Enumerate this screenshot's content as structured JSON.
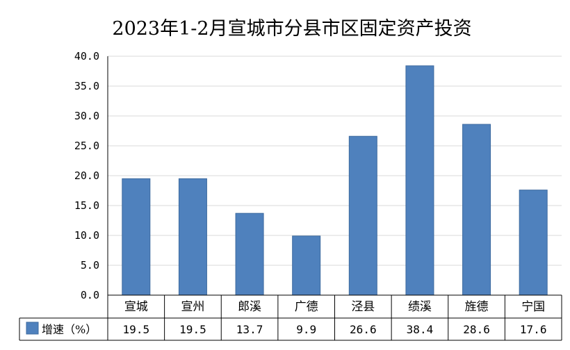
{
  "chart_data": {
    "type": "bar",
    "title": "2023年1-2月宣城市分县市区固定资产投资",
    "categories": [
      "宣城",
      "宣州",
      "郎溪",
      "广德",
      "泾县",
      "绩溪",
      "旌德",
      "宁国"
    ],
    "series": [
      {
        "name": "增速（%）",
        "values": [
          19.5,
          19.5,
          13.7,
          9.9,
          26.6,
          38.4,
          28.6,
          17.6
        ]
      }
    ],
    "yticks": [
      "0.0",
      "5.0",
      "10.0",
      "15.0",
      "20.0",
      "25.0",
      "30.0",
      "35.0",
      "40.0"
    ],
    "ylim": [
      0,
      40
    ],
    "grid": true,
    "legend": "data-table-left",
    "colors": {
      "bar": "#4f81bd",
      "bar_edge": "#3d6a9f",
      "grid": "#d9d9d9",
      "axis": "#000000"
    }
  }
}
